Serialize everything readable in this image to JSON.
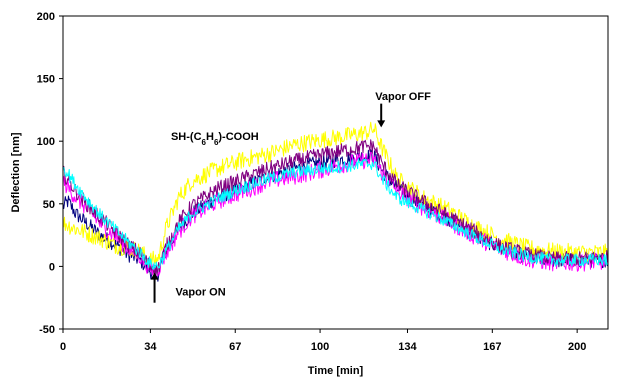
{
  "chart_data": {
    "type": "line",
    "title": "",
    "xlabel": "Time [min]",
    "ylabel": "Deflection [nm]",
    "xlim": [
      0,
      212
    ],
    "ylim": [
      -50,
      200
    ],
    "x_ticks": [
      0,
      34,
      67,
      100,
      134,
      167,
      200
    ],
    "y_ticks": [
      -50,
      0,
      50,
      100,
      150,
      200
    ],
    "grid": false,
    "legend": "none",
    "annotations": {
      "compound": {
        "prefix": "SH-(C",
        "sub1": "6",
        "mid": "H",
        "sub2": "6",
        "suffix": ")-COOH",
        "x": 42,
        "y": 101
      },
      "vapor_on": {
        "text": "Vapor ON",
        "x": 36,
        "y": -20
      },
      "vapor_off": {
        "text": "Vapor OFF",
        "x": 123,
        "y": 136
      }
    },
    "series": [
      {
        "color": "#000080",
        "noise": 6,
        "points": [
          [
            0,
            48
          ],
          [
            2,
            52
          ],
          [
            5,
            42
          ],
          [
            10,
            33
          ],
          [
            15,
            24
          ],
          [
            20,
            18
          ],
          [
            25,
            10
          ],
          [
            30,
            5
          ],
          [
            34,
            -4
          ],
          [
            37,
            -6
          ],
          [
            40,
            12
          ],
          [
            45,
            30
          ],
          [
            50,
            42
          ],
          [
            60,
            55
          ],
          [
            70,
            63
          ],
          [
            80,
            72
          ],
          [
            90,
            78
          ],
          [
            100,
            83
          ],
          [
            110,
            86
          ],
          [
            118,
            88
          ],
          [
            121,
            88
          ],
          [
            124,
            77
          ],
          [
            130,
            62
          ],
          [
            140,
            48
          ],
          [
            150,
            38
          ],
          [
            160,
            25
          ],
          [
            170,
            15
          ],
          [
            180,
            8
          ],
          [
            190,
            5
          ],
          [
            200,
            5
          ],
          [
            212,
            5
          ]
        ]
      },
      {
        "color": "#FFFF00",
        "noise": 7,
        "points": [
          [
            0,
            35
          ],
          [
            5,
            30
          ],
          [
            10,
            26
          ],
          [
            15,
            22
          ],
          [
            20,
            17
          ],
          [
            25,
            15
          ],
          [
            30,
            12
          ],
          [
            34,
            5
          ],
          [
            37,
            6
          ],
          [
            40,
            30
          ],
          [
            45,
            55
          ],
          [
            50,
            68
          ],
          [
            60,
            78
          ],
          [
            70,
            85
          ],
          [
            80,
            90
          ],
          [
            90,
            97
          ],
          [
            100,
            101
          ],
          [
            110,
            104
          ],
          [
            118,
            107
          ],
          [
            121,
            110
          ],
          [
            124,
            95
          ],
          [
            130,
            70
          ],
          [
            140,
            55
          ],
          [
            150,
            45
          ],
          [
            160,
            32
          ],
          [
            170,
            22
          ],
          [
            180,
            15
          ],
          [
            190,
            12
          ],
          [
            200,
            11
          ],
          [
            212,
            11
          ]
        ]
      },
      {
        "color": "#FF00FF",
        "noise": 7,
        "points": [
          [
            0,
            68
          ],
          [
            5,
            55
          ],
          [
            10,
            45
          ],
          [
            15,
            33
          ],
          [
            20,
            25
          ],
          [
            25,
            15
          ],
          [
            30,
            8
          ],
          [
            34,
            -2
          ],
          [
            37,
            -2
          ],
          [
            40,
            10
          ],
          [
            45,
            28
          ],
          [
            50,
            40
          ],
          [
            60,
            52
          ],
          [
            70,
            60
          ],
          [
            80,
            68
          ],
          [
            90,
            72
          ],
          [
            100,
            77
          ],
          [
            110,
            82
          ],
          [
            118,
            85
          ],
          [
            121,
            85
          ],
          [
            124,
            75
          ],
          [
            130,
            60
          ],
          [
            140,
            47
          ],
          [
            150,
            36
          ],
          [
            160,
            24
          ],
          [
            170,
            14
          ],
          [
            180,
            6
          ],
          [
            190,
            3
          ],
          [
            200,
            3
          ],
          [
            212,
            4
          ]
        ]
      },
      {
        "color": "#800080",
        "noise": 6,
        "points": [
          [
            0,
            75
          ],
          [
            5,
            60
          ],
          [
            10,
            48
          ],
          [
            15,
            38
          ],
          [
            20,
            28
          ],
          [
            25,
            18
          ],
          [
            30,
            10
          ],
          [
            34,
            0
          ],
          [
            37,
            -2
          ],
          [
            40,
            15
          ],
          [
            45,
            35
          ],
          [
            50,
            48
          ],
          [
            60,
            62
          ],
          [
            70,
            70
          ],
          [
            80,
            78
          ],
          [
            90,
            84
          ],
          [
            100,
            89
          ],
          [
            110,
            93
          ],
          [
            118,
            96
          ],
          [
            121,
            96
          ],
          [
            124,
            82
          ],
          [
            130,
            65
          ],
          [
            140,
            52
          ],
          [
            150,
            40
          ],
          [
            160,
            28
          ],
          [
            170,
            16
          ],
          [
            180,
            10
          ],
          [
            190,
            6
          ],
          [
            200,
            6
          ],
          [
            212,
            7
          ]
        ]
      },
      {
        "color": "#00FFFF",
        "noise": 5,
        "points": [
          [
            0,
            80
          ],
          [
            5,
            65
          ],
          [
            10,
            52
          ],
          [
            15,
            40
          ],
          [
            20,
            30
          ],
          [
            25,
            20
          ],
          [
            30,
            11
          ],
          [
            34,
            2
          ],
          [
            37,
            0
          ],
          [
            40,
            12
          ],
          [
            45,
            30
          ],
          [
            50,
            42
          ],
          [
            60,
            54
          ],
          [
            70,
            63
          ],
          [
            80,
            70
          ],
          [
            90,
            75
          ],
          [
            100,
            78
          ],
          [
            110,
            80
          ],
          [
            118,
            82
          ],
          [
            121,
            82
          ],
          [
            124,
            70
          ],
          [
            130,
            55
          ],
          [
            140,
            45
          ],
          [
            150,
            35
          ],
          [
            160,
            24
          ],
          [
            170,
            14
          ],
          [
            180,
            8
          ],
          [
            190,
            5
          ],
          [
            200,
            5
          ],
          [
            212,
            5
          ]
        ]
      }
    ]
  }
}
